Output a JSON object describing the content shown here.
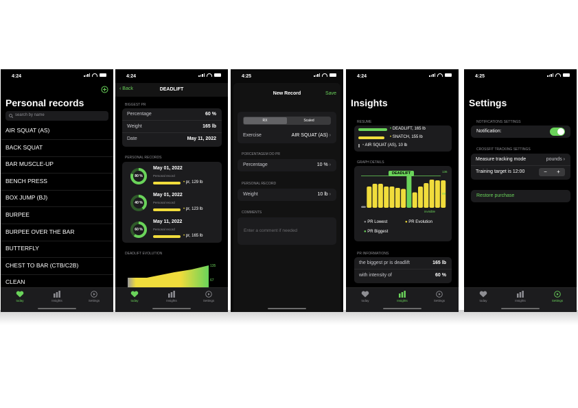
{
  "status": {
    "t1": "4:24",
    "t2": "4:24",
    "t3": "4:25",
    "t4": "4:24",
    "t5": "4:25"
  },
  "tabs": {
    "today": "today",
    "insights": "Insights",
    "settings": "Settings"
  },
  "screen1": {
    "title": "Personal records",
    "search_placeholder": "search by name",
    "items": [
      "AIR SQUAT (AS)",
      "BACK SQUAT",
      "BAR MUSCLE-UP",
      "BENCH PRESS",
      "BOX JUMP (BJ)",
      "BURPEE",
      "BURPEE OVER THE BAR",
      "BUTTERFLY",
      "CHEST TO BAR (CTB/C2B)",
      "CLEAN"
    ]
  },
  "screen2": {
    "back": "Back",
    "title": "DEADLIFT",
    "biggest_pr_header": "BIGGEST PR",
    "rows": [
      {
        "label": "Percentage",
        "value": "60 %"
      },
      {
        "label": "Weight",
        "value": "165 lb"
      },
      {
        "label": "Date",
        "value": "May 11, 2022"
      }
    ],
    "records_header": "PERSONAL RECORDS",
    "records": [
      {
        "pct": "80 %",
        "date": "May 01, 2022",
        "sub": "Personal record",
        "pr": "pr, 129 lb",
        "fill": 0.8
      },
      {
        "pct": "40 %",
        "date": "May 01, 2022",
        "sub": "Personal record",
        "pr": "pr, 123 lb",
        "fill": 0.4
      },
      {
        "pct": "60 %",
        "date": "May 11, 2022",
        "sub": "Personal record",
        "pr": "pr, 165 lb",
        "fill": 0.6
      }
    ],
    "evolution_header": "DEADLIFT EVOLUTION",
    "evo_max": "135",
    "evo_min": "67"
  },
  "screen3": {
    "title": "New Record",
    "save": "Save",
    "seg": [
      "RX",
      "Scaled"
    ],
    "exercise_label": "Exercise",
    "exercise_value": "AIR SQUAT (AS)",
    "pct_header": "PORCENTAGEM DO PR",
    "pct_label": "Percentage",
    "pct_value": "10 %",
    "pr_header": "PERSONAL RECORD",
    "weight_label": "Weight",
    "weight_value": "10 lb",
    "comments_header": "COMMENTS",
    "comment_placeholder": "Enter a comment if needed"
  },
  "screen4": {
    "title": "Insights",
    "resume_header": "RESUME",
    "resume": [
      {
        "text": "DEADLIFT, 165 lb"
      },
      {
        "text": "SNATCH, 155 lb"
      },
      {
        "text": "AIR SQUAT (AS), 10 lb"
      }
    ],
    "graph_header": "GRAPH DETAILS",
    "graph_label": "DEADLIFT",
    "graph_max": "136",
    "graph_mid": "99",
    "graph_invisible": "invisible",
    "legend": [
      "PR Lowest",
      "PR Evolution",
      "PR Biggest"
    ],
    "pr_info_header": "PR INFORMATIONS",
    "pr_rows": [
      {
        "label": "the biggest pr is deadlift",
        "value": "165 lb"
      },
      {
        "label": "with intensity of",
        "value": "60 %"
      }
    ]
  },
  "screen5": {
    "title": "Settings",
    "notif_header": "NOTIFICATIONS SETTINGS",
    "notif_label": "Notification:",
    "cf_header": "CROSSFIT TRACKING SETTINGS",
    "mode_label": "Measure tracking mode",
    "mode_value": "pounds",
    "target_label": "Training target is 12:00",
    "stepper_minus": "−",
    "stepper_plus": "+",
    "restore": "Restore purchase"
  },
  "colors": {
    "accent": "#6ad35a",
    "yellow": "#f0dc3c",
    "bg": "#000000",
    "card": "#1c1c1e"
  }
}
